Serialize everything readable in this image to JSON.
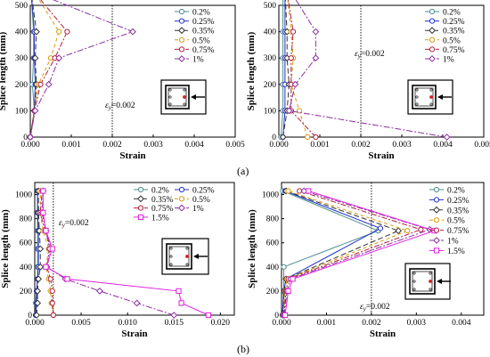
{
  "captions": {
    "a": "(a)",
    "b": "(b)"
  },
  "chart_data": [
    {
      "type": "line",
      "xlabel": "Strain",
      "ylabel": "Splice length (mm)",
      "xlim": [
        0,
        0.005
      ],
      "ylim": [
        0,
        500
      ],
      "xticks": [
        "0.000",
        "0.001",
        "0.002",
        "0.003",
        "0.004",
        "0.005"
      ],
      "yticks": [
        "0",
        "100",
        "200",
        "300",
        "400",
        "500"
      ],
      "grid": false,
      "legend_position": "top-right",
      "reference_line": {
        "x": 0.002,
        "label": "ε_y=0.002"
      },
      "inset_icon": "rc-section-with-load-arrow",
      "series": [
        {
          "name": "0.2%",
          "color": "#4e8f8f",
          "marker": "circle",
          "dash": "",
          "points": [
            [
              0.0,
              0
            ],
            [
              0.0001,
              100
            ],
            [
              5e-05,
              200
            ],
            [
              8e-05,
              300
            ],
            [
              8e-05,
              400
            ],
            [
              2e-05,
              550
            ]
          ]
        },
        {
          "name": "0.25%",
          "color": "#2233cc",
          "marker": "circle",
          "dash": "",
          "points": [
            [
              0.0,
              0
            ],
            [
              0.0001,
              100
            ],
            [
              0.00012,
              200
            ],
            [
              0.0001,
              300
            ],
            [
              0.0001,
              400
            ],
            [
              2e-05,
              550
            ]
          ]
        },
        {
          "name": "0.35%",
          "color": "#333333",
          "marker": "diamond",
          "dash": "6,3",
          "points": [
            [
              0.0,
              0
            ],
            [
              0.0001,
              100
            ],
            [
              0.00015,
              200
            ],
            [
              0.00012,
              300
            ],
            [
              0.00015,
              400
            ],
            [
              2e-05,
              550
            ]
          ]
        },
        {
          "name": "0.5%",
          "color": "#d99a0a",
          "marker": "circle",
          "dash": "4,3",
          "points": [
            [
              0.0,
              0
            ],
            [
              0.0001,
              100
            ],
            [
              0.0002,
              200
            ],
            [
              0.0005,
              300
            ],
            [
              0.0007,
              400
            ],
            [
              0.0001,
              550
            ]
          ]
        },
        {
          "name": "0.75%",
          "color": "#b01e3e",
          "marker": "circle",
          "dash": "6,2,2,2",
          "points": [
            [
              0.0,
              0
            ],
            [
              0.0001,
              100
            ],
            [
              0.00025,
              200
            ],
            [
              0.0006,
              300
            ],
            [
              0.0009,
              400
            ],
            [
              0.0001,
              550
            ]
          ]
        },
        {
          "name": "1%",
          "color": "#8b2fa0",
          "marker": "diamond",
          "dash": "7,2,2,2",
          "points": [
            [
              0.0,
              0
            ],
            [
              0.00012,
              100
            ],
            [
              0.00045,
              200
            ],
            [
              0.0007,
              300
            ],
            [
              0.0025,
              400
            ],
            [
              0.0001,
              550
            ]
          ]
        }
      ]
    },
    {
      "type": "line",
      "xlabel": "Strain",
      "ylabel": "Splice length (mm)",
      "xlim": [
        0,
        0.005
      ],
      "ylim": [
        0,
        500
      ],
      "xticks": [
        "0.000",
        "0.001",
        "0.002",
        "0.003",
        "0.004",
        "0.005"
      ],
      "yticks": [
        "0",
        "100",
        "200",
        "300",
        "400",
        "500"
      ],
      "grid": false,
      "legend_position": "top-right",
      "reference_line": {
        "x": 0.002,
        "label": "ε_y=0.002"
      },
      "inset_icon": "rc-section-with-load-arrow",
      "series": [
        {
          "name": "0.2%",
          "color": "#4e8f8f",
          "marker": "circle",
          "dash": "",
          "points": [
            [
              5e-05,
              0
            ],
            [
              0.0001,
              100
            ],
            [
              0.0001,
              200
            ],
            [
              0.0001,
              300
            ],
            [
              0.0001,
              400
            ],
            [
              0.0001,
              550
            ]
          ]
        },
        {
          "name": "0.25%",
          "color": "#2233cc",
          "marker": "circle",
          "dash": "",
          "points": [
            [
              0.0001,
              0
            ],
            [
              0.00015,
              100
            ],
            [
              0.00015,
              200
            ],
            [
              0.00015,
              300
            ],
            [
              0.00015,
              400
            ],
            [
              0.00015,
              550
            ]
          ]
        },
        {
          "name": "0.35%",
          "color": "#333333",
          "marker": "diamond",
          "dash": "6,3",
          "points": [
            [
              0.0001,
              0
            ],
            [
              0.0002,
              100
            ],
            [
              0.00025,
              200
            ],
            [
              0.0002,
              300
            ],
            [
              0.0002,
              400
            ],
            [
              0.00015,
              550
            ]
          ]
        },
        {
          "name": "0.5%",
          "color": "#d99a0a",
          "marker": "circle",
          "dash": "4,3",
          "points": [
            [
              0.0007,
              0
            ],
            [
              0.0005,
              100
            ],
            [
              0.0003,
              200
            ],
            [
              0.00035,
              300
            ],
            [
              0.0003,
              400
            ],
            [
              0.0002,
              550
            ]
          ]
        },
        {
          "name": "0.75%",
          "color": "#b01e3e",
          "marker": "circle",
          "dash": "6,2,2,2",
          "points": [
            [
              0.0009,
              0
            ],
            [
              0.0003,
              100
            ],
            [
              0.0003,
              200
            ],
            [
              0.0003,
              300
            ],
            [
              0.00035,
              400
            ],
            [
              0.0002,
              550
            ]
          ]
        },
        {
          "name": "1%",
          "color": "#8b2fa0",
          "marker": "diamond",
          "dash": "7,2,2,2",
          "points": [
            [
              0.0041,
              0
            ],
            [
              0.00025,
              100
            ],
            [
              0.0004,
              200
            ],
            [
              0.0009,
              300
            ],
            [
              0.0009,
              400
            ],
            [
              0.0003,
              550
            ]
          ]
        }
      ]
    },
    {
      "type": "line",
      "xlabel": "Strain",
      "ylabel": "Splice length (mm)",
      "xlim": [
        0,
        0.0215
      ],
      "ylim": [
        0,
        1100
      ],
      "xticks": [
        "0.000",
        "0.005",
        "0.010",
        "0.015",
        "0.020"
      ],
      "yticks": [
        "0",
        "200",
        "400",
        "600",
        "800",
        "1000"
      ],
      "grid": false,
      "legend_position": "top-right",
      "reference_line": {
        "x": 0.002,
        "label": "ε_y=0.002"
      },
      "inset_icon": "rc-section-with-load-arrow",
      "series": [
        {
          "name": "0.2%",
          "color": "#4e8f8f",
          "marker": "circle",
          "dash": "",
          "points": [
            [
              0.0001,
              0
            ],
            [
              0.0001,
              100
            ],
            [
              0.0002,
              200
            ],
            [
              0.0003,
              300
            ],
            [
              0.0003,
              400
            ],
            [
              0.0003,
              550
            ],
            [
              0.0003,
              700
            ],
            [
              0.0003,
              850
            ],
            [
              0.0003,
              1030
            ]
          ]
        },
        {
          "name": "0.25%",
          "color": "#2233cc",
          "marker": "circle",
          "dash": "",
          "points": [
            [
              0.0001,
              0
            ],
            [
              0.0002,
              100
            ],
            [
              0.0002,
              200
            ],
            [
              0.0003,
              300
            ],
            [
              0.0004,
              400
            ],
            [
              0.0004,
              550
            ],
            [
              0.0004,
              700
            ],
            [
              0.0003,
              850
            ],
            [
              0.0003,
              1030
            ]
          ]
        },
        {
          "name": "0.35%",
          "color": "#333333",
          "marker": "diamond",
          "dash": "6,3",
          "points": [
            [
              0.0002,
              0
            ],
            [
              0.0003,
              100
            ],
            [
              0.0003,
              200
            ],
            [
              0.0004,
              300
            ],
            [
              0.0006,
              400
            ],
            [
              0.0006,
              550
            ],
            [
              0.0005,
              700
            ],
            [
              0.0004,
              850
            ],
            [
              0.0004,
              1030
            ]
          ]
        },
        {
          "name": "0.5%",
          "color": "#d99a0a",
          "marker": "circle",
          "dash": "4,3",
          "points": [
            [
              0.002,
              0
            ],
            [
              0.0018,
              100
            ],
            [
              0.0017,
              200
            ],
            [
              0.0015,
              300
            ],
            [
              0.0012,
              400
            ],
            [
              0.0015,
              550
            ],
            [
              0.0009,
              700
            ],
            [
              0.0006,
              850
            ],
            [
              0.0006,
              1030
            ]
          ]
        },
        {
          "name": "0.75%",
          "color": "#b01e3e",
          "marker": "circle",
          "dash": "6,2,2,2",
          "points": [
            [
              0.002,
              0
            ],
            [
              0.0019,
              100
            ],
            [
              0.0019,
              200
            ],
            [
              0.0017,
              300
            ],
            [
              0.0013,
              400
            ],
            [
              0.0018,
              550
            ],
            [
              0.0011,
              700
            ],
            [
              0.0006,
              850
            ],
            [
              0.0008,
              1030
            ]
          ]
        },
        {
          "name": "1%",
          "color": "#8b2fa0",
          "marker": "diamond",
          "dash": "7,2,2,2",
          "points": [
            [
              0.015,
              0
            ],
            [
              0.011,
              100
            ],
            [
              0.007,
              200
            ],
            [
              0.0033,
              300
            ],
            [
              0.0013,
              400
            ],
            [
              0.0016,
              550
            ],
            [
              0.0012,
              700
            ],
            [
              0.0008,
              850
            ],
            [
              0.0009,
              1030
            ]
          ]
        },
        {
          "name": "1.5%",
          "color": "#e020e0",
          "marker": "square",
          "dash": "",
          "points": [
            [
              0.0187,
              0
            ],
            [
              0.0158,
              100
            ],
            [
              0.0155,
              200
            ],
            [
              0.0035,
              300
            ],
            [
              0.0012,
              400
            ],
            [
              0.0019,
              550
            ],
            [
              0.0012,
              700
            ],
            [
              0.0009,
              850
            ],
            [
              0.0009,
              1030
            ]
          ]
        }
      ]
    },
    {
      "type": "line",
      "xlabel": "Strain",
      "ylabel": "Splice length (mm)",
      "xlim": [
        0,
        0.0045
      ],
      "ylim": [
        0,
        1100
      ],
      "xticks": [
        "0.000",
        "0.001",
        "0.002",
        "0.003",
        "0.004"
      ],
      "yticks": [
        "0",
        "200",
        "400",
        "600",
        "800",
        "1000"
      ],
      "grid": false,
      "legend_position": "top-right",
      "reference_line": {
        "x": 0.002,
        "label": "ε_y=0.002"
      },
      "inset_icon": "rc-section-with-load-arrow",
      "series": [
        {
          "name": "0.2%",
          "color": "#4e8f8f",
          "marker": "circle",
          "dash": "",
          "points": [
            [
              2e-05,
              0
            ],
            [
              5e-05,
              200
            ],
            [
              5e-05,
              400
            ],
            [
              0.00215,
              700
            ],
            [
              3e-05,
              1030
            ]
          ]
        },
        {
          "name": "0.25%",
          "color": "#2233cc",
          "marker": "circle",
          "dash": "",
          "points": [
            [
              2e-05,
              0
            ],
            [
              5e-05,
              200
            ],
            [
              0.0001,
              300
            ],
            [
              0.0022,
              720
            ],
            [
              8e-05,
              1030
            ]
          ]
        },
        {
          "name": "0.35%",
          "color": "#333333",
          "marker": "diamond",
          "dash": "6,3",
          "points": [
            [
              3e-05,
              0
            ],
            [
              6e-05,
              200
            ],
            [
              0.0001,
              300
            ],
            [
              0.0026,
              700
            ],
            [
              0.0001,
              1030
            ]
          ]
        },
        {
          "name": "0.5%",
          "color": "#d99a0a",
          "marker": "circle",
          "dash": "4,3",
          "points": [
            [
              4e-05,
              0
            ],
            [
              8e-05,
              200
            ],
            [
              0.00012,
              300
            ],
            [
              0.0028,
              700
            ],
            [
              0.00015,
              1030
            ]
          ]
        },
        {
          "name": "0.75%",
          "color": "#b01e3e",
          "marker": "circle",
          "dash": "6,2,2,2",
          "points": [
            [
              5e-05,
              0
            ],
            [
              0.0001,
              200
            ],
            [
              0.00015,
              300
            ],
            [
              0.0031,
              710
            ],
            [
              0.0004,
              1030
            ]
          ]
        },
        {
          "name": "1%",
          "color": "#8b2fa0",
          "marker": "diamond",
          "dash": "7,2,2,2",
          "points": [
            [
              6e-05,
              0
            ],
            [
              0.00012,
              200
            ],
            [
              0.0002,
              300
            ],
            [
              0.0033,
              710
            ],
            [
              0.0005,
              1030
            ]
          ]
        },
        {
          "name": "1.5%",
          "color": "#e020e0",
          "marker": "square",
          "dash": "",
          "points": [
            [
              8e-05,
              0
            ],
            [
              0.00015,
              200
            ],
            [
              0.00025,
              300
            ],
            [
              0.0034,
              700
            ],
            [
              0.0006,
              1030
            ]
          ]
        }
      ]
    }
  ]
}
